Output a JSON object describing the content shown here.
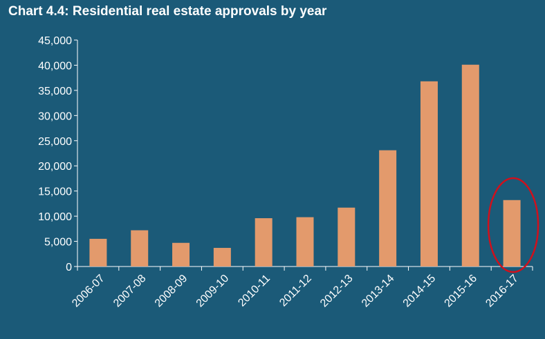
{
  "chart_data": {
    "type": "bar",
    "title": "Chart 4.4: Residential real estate approvals by year",
    "xlabel": "",
    "ylabel": "",
    "categories": [
      "2006-07",
      "2007-08",
      "2008-09",
      "2009-10",
      "2010-11",
      "2011-12",
      "2012-13",
      "2013-14",
      "2014-15",
      "2015-16",
      "2016-17"
    ],
    "values": [
      5500,
      7200,
      4700,
      3700,
      9600,
      9800,
      11700,
      23100,
      36800,
      40100,
      13200
    ],
    "ylim": [
      0,
      45000
    ],
    "yticks": [
      0,
      5000,
      10000,
      15000,
      20000,
      25000,
      30000,
      35000,
      40000,
      45000
    ],
    "ytick_labels": [
      "0",
      "5,000",
      "10,000",
      "15,000",
      "20,000",
      "25,000",
      "30,000",
      "35,000",
      "40,000",
      "45,000"
    ],
    "grid": false,
    "legend": "none",
    "highlight": {
      "category": "2016-17",
      "shape": "ellipse"
    },
    "colors": {
      "background": "#1b5a78",
      "bar": "#e39a6c",
      "axis": "#ffffff",
      "text": "#ffffff",
      "highlight": "#d0101c"
    }
  }
}
